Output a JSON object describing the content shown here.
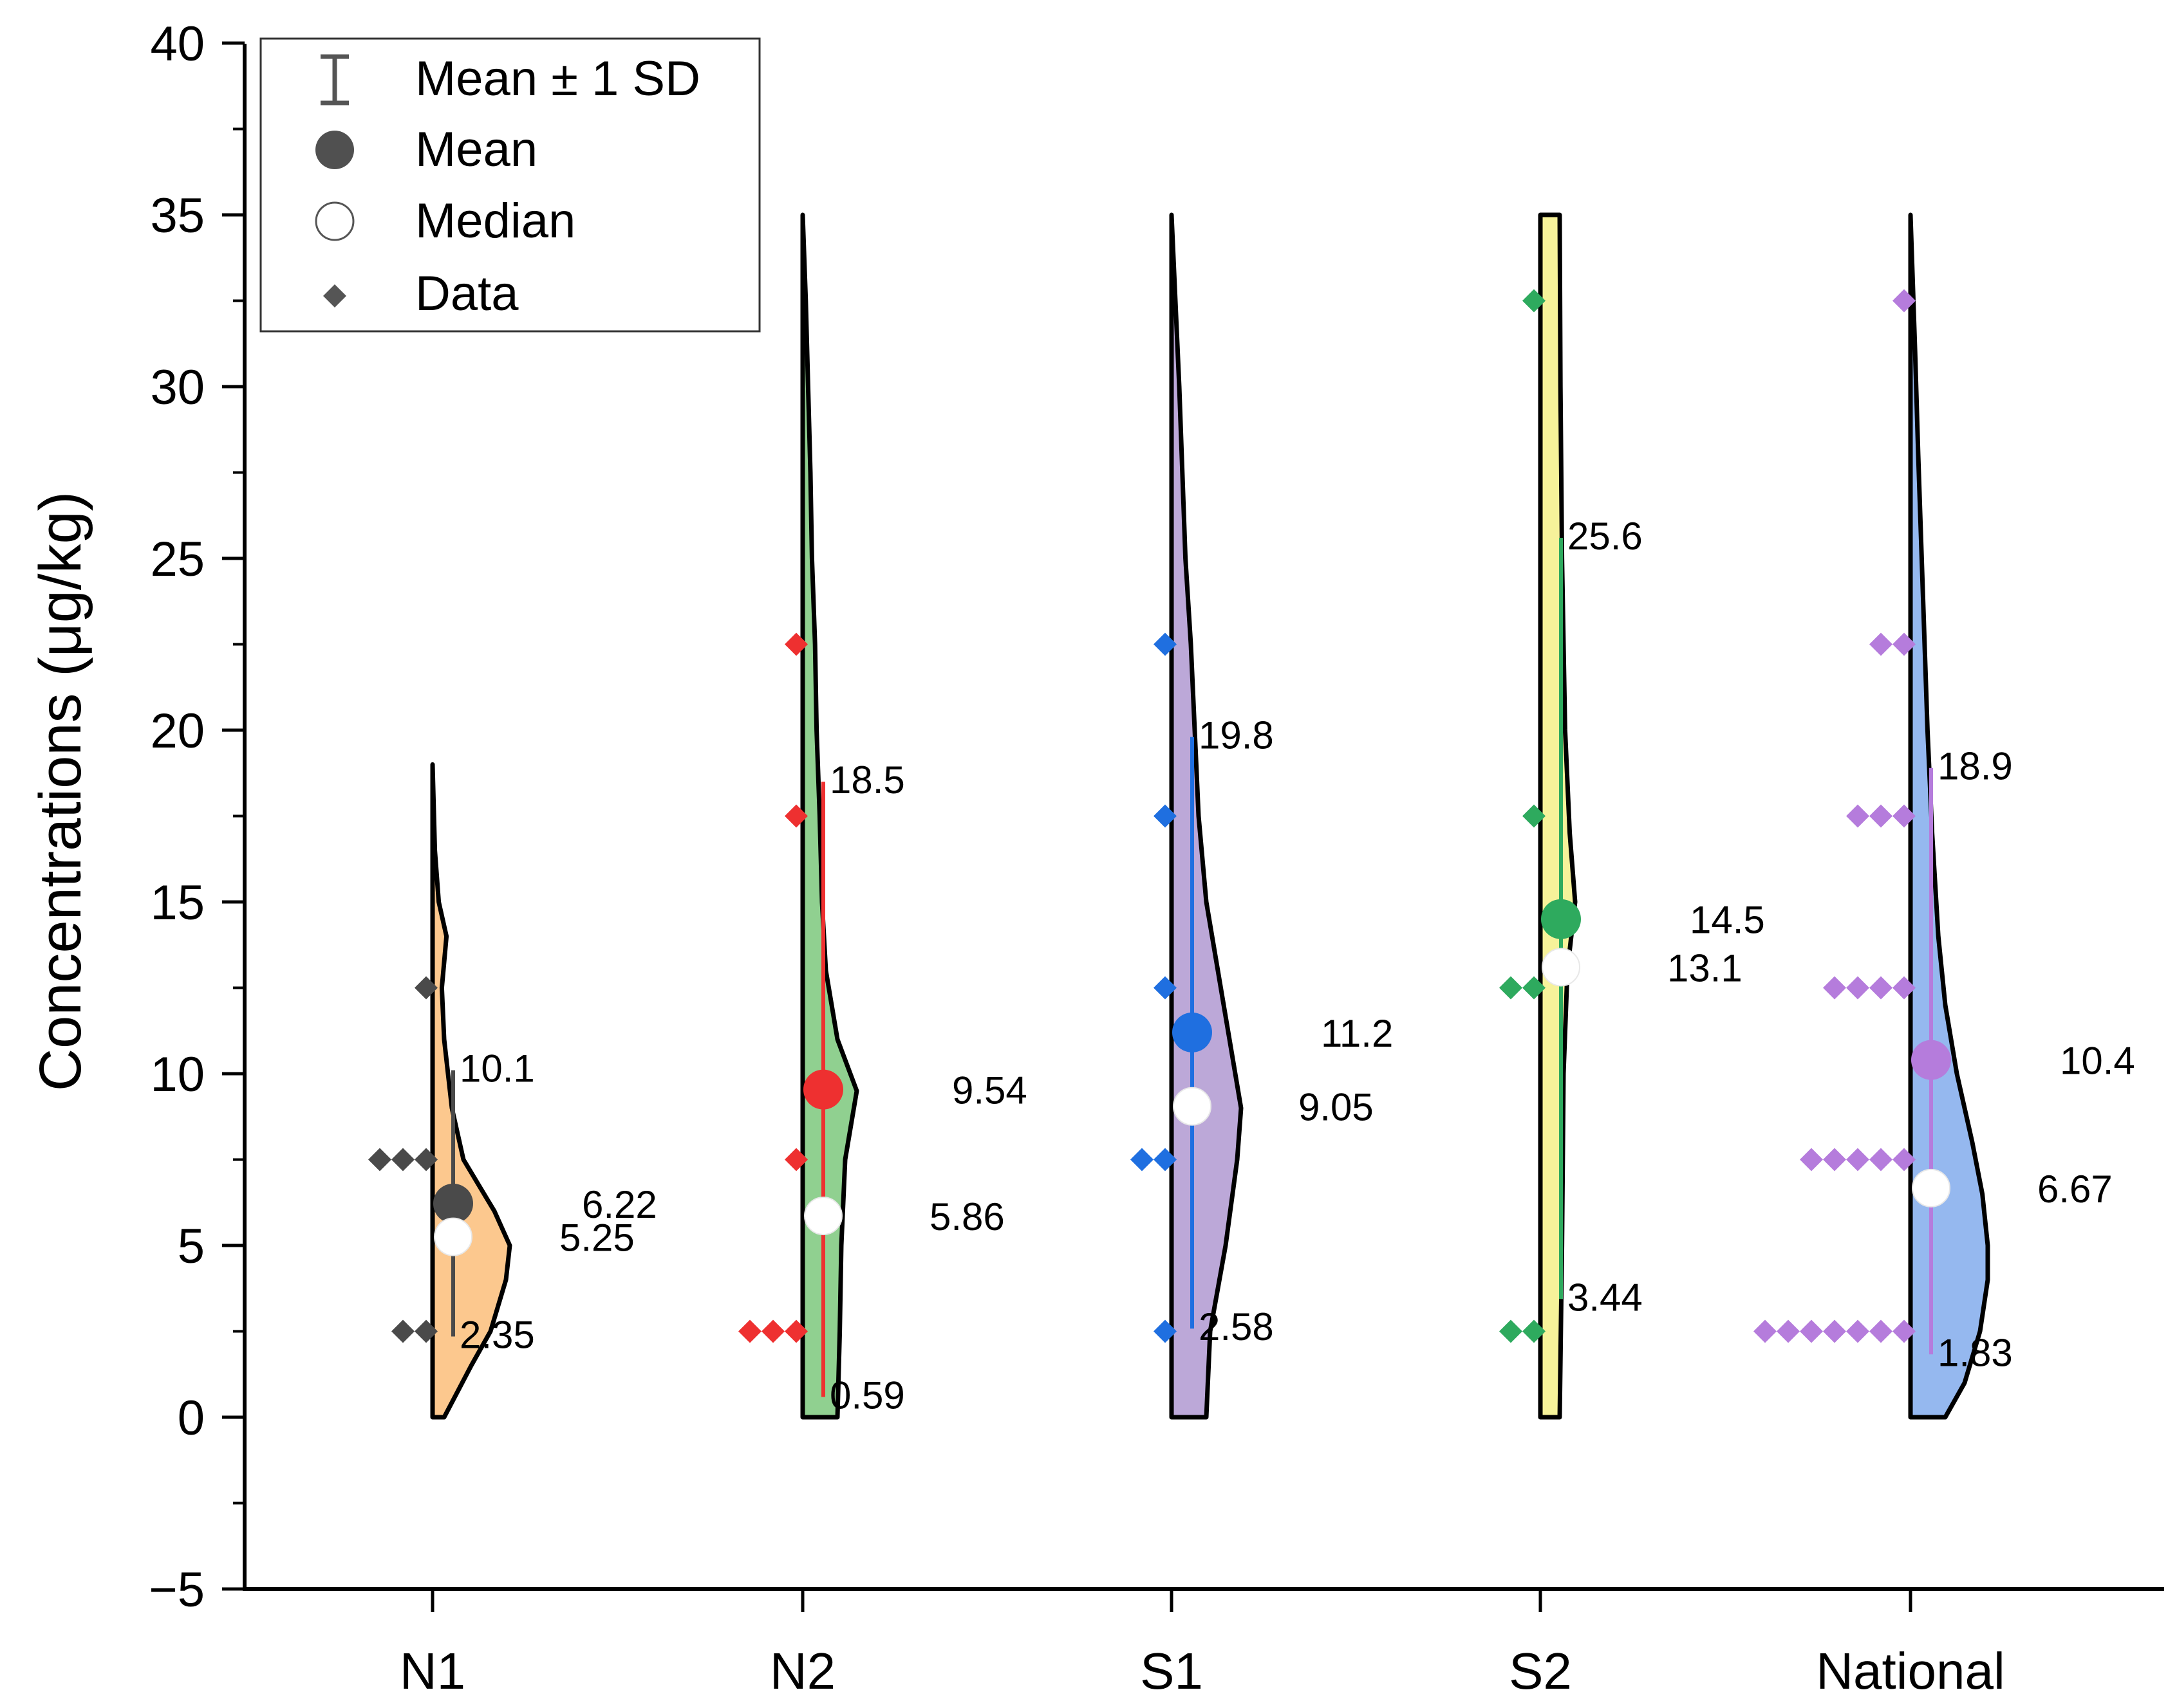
{
  "chart_data": {
    "type": "violin",
    "ylabel": "Concentrations (μg/kg)",
    "ylim": [
      -5,
      40
    ],
    "yticks": [
      -5,
      0,
      5,
      10,
      15,
      20,
      25,
      30,
      35,
      40
    ],
    "legend": {
      "position": "top-left",
      "entries": [
        {
          "key": "sd",
          "label": "Mean ± 1 SD"
        },
        {
          "key": "mean",
          "label": "Mean"
        },
        {
          "key": "median",
          "label": "Median"
        },
        {
          "key": "data",
          "label": "Data"
        }
      ]
    },
    "groups": [
      {
        "name": "N1",
        "fill": "#fcc88e",
        "accent": "#4a4a4a",
        "mean": 6.22,
        "median": 5.25,
        "sd_low": 2.35,
        "sd_high": 10.1,
        "mean_label": "6.22",
        "median_label": "5.25",
        "low_label": "2.35",
        "high_label": "10.1",
        "density": [
          [
            0,
            0.15
          ],
          [
            1.5,
            0.5
          ],
          [
            2.5,
            0.75
          ],
          [
            4,
            0.95
          ],
          [
            5,
            1.0
          ],
          [
            6,
            0.8
          ],
          [
            7.5,
            0.4
          ],
          [
            9,
            0.25
          ],
          [
            11,
            0.15
          ],
          [
            12.5,
            0.12
          ],
          [
            14,
            0.18
          ],
          [
            15,
            0.08
          ],
          [
            16.5,
            0.03
          ],
          [
            19,
            0
          ]
        ],
        "points": [
          [
            2.5,
            2
          ],
          [
            7.5,
            3
          ],
          [
            12.5,
            1
          ]
        ]
      },
      {
        "name": "N2",
        "fill": "#90d090",
        "accent": "#ee3030",
        "mean": 9.54,
        "median": 5.86,
        "sd_low": 0.59,
        "sd_high": 18.5,
        "mean_label": "9.54",
        "median_label": "5.86",
        "low_label": "0.59",
        "high_label": "18.5",
        "density": [
          [
            0,
            0.45
          ],
          [
            2.5,
            0.48
          ],
          [
            5,
            0.5
          ],
          [
            7.5,
            0.55
          ],
          [
            9.5,
            0.7
          ],
          [
            11,
            0.45
          ],
          [
            13,
            0.3
          ],
          [
            15,
            0.25
          ],
          [
            17.5,
            0.22
          ],
          [
            20,
            0.18
          ],
          [
            22.5,
            0.16
          ],
          [
            25,
            0.12
          ],
          [
            27.5,
            0.1
          ],
          [
            30,
            0.07
          ],
          [
            32.5,
            0.04
          ],
          [
            35,
            0
          ]
        ],
        "points": [
          [
            2.5,
            3
          ],
          [
            7.5,
            1
          ],
          [
            17.5,
            1
          ],
          [
            22.5,
            1
          ]
        ]
      },
      {
        "name": "S1",
        "fill": "#bca8d8",
        "accent": "#1f6fe0",
        "mean": 11.2,
        "median": 9.05,
        "sd_low": 2.58,
        "sd_high": 19.8,
        "mean_label": "11.2",
        "median_label": "9.05",
        "low_label": "2.58",
        "high_label": "19.8",
        "density": [
          [
            0,
            0.45
          ],
          [
            2.5,
            0.5
          ],
          [
            5,
            0.7
          ],
          [
            7.5,
            0.85
          ],
          [
            9,
            0.9
          ],
          [
            11,
            0.75
          ],
          [
            13,
            0.6
          ],
          [
            15,
            0.45
          ],
          [
            17.5,
            0.35
          ],
          [
            20,
            0.3
          ],
          [
            22.5,
            0.25
          ],
          [
            25,
            0.18
          ],
          [
            27.5,
            0.14
          ],
          [
            30,
            0.1
          ],
          [
            32.5,
            0.05
          ],
          [
            35,
            0
          ]
        ],
        "points": [
          [
            2.5,
            1
          ],
          [
            7.5,
            2
          ],
          [
            12.5,
            1
          ],
          [
            17.5,
            1
          ],
          [
            22.5,
            1
          ]
        ]
      },
      {
        "name": "S2",
        "fill": "#f6f29a",
        "accent": "#2eaa5e",
        "mean": 14.5,
        "median": 13.1,
        "sd_low": 3.44,
        "sd_high": 25.6,
        "mean_label": "14.5",
        "median_label": "13.1",
        "low_label": "3.44",
        "high_label": "25.6",
        "density": [
          [
            0,
            0.25
          ],
          [
            5,
            0.28
          ],
          [
            10,
            0.3
          ],
          [
            13,
            0.35
          ],
          [
            15,
            0.45
          ],
          [
            17,
            0.38
          ],
          [
            20,
            0.32
          ],
          [
            25,
            0.28
          ],
          [
            30,
            0.26
          ],
          [
            35,
            0.25
          ]
        ],
        "points": [
          [
            2.5,
            2
          ],
          [
            12.5,
            2
          ],
          [
            17.5,
            1
          ],
          [
            32.5,
            1
          ]
        ]
      },
      {
        "name": "National",
        "fill": "#95b8ef",
        "accent": "#b57cdc",
        "mean": 10.4,
        "median": 6.67,
        "sd_low": 1.83,
        "sd_high": 18.9,
        "mean_label": "10.4",
        "median_label": "6.67",
        "low_label": "1.83",
        "high_label": "18.9",
        "density": [
          [
            0,
            0.45
          ],
          [
            1,
            0.7
          ],
          [
            2.5,
            0.9
          ],
          [
            4,
            1.0
          ],
          [
            5,
            1.0
          ],
          [
            6.5,
            0.93
          ],
          [
            8,
            0.8
          ],
          [
            10,
            0.6
          ],
          [
            12,
            0.45
          ],
          [
            14,
            0.36
          ],
          [
            17,
            0.28
          ],
          [
            20,
            0.22
          ],
          [
            24,
            0.16
          ],
          [
            28,
            0.1
          ],
          [
            31,
            0.06
          ],
          [
            33,
            0.03
          ],
          [
            35,
            0
          ]
        ],
        "points": [
          [
            2.5,
            7
          ],
          [
            7.5,
            5
          ],
          [
            12.5,
            4
          ],
          [
            17.5,
            3
          ],
          [
            22.5,
            2
          ],
          [
            32.5,
            1
          ]
        ]
      }
    ]
  }
}
